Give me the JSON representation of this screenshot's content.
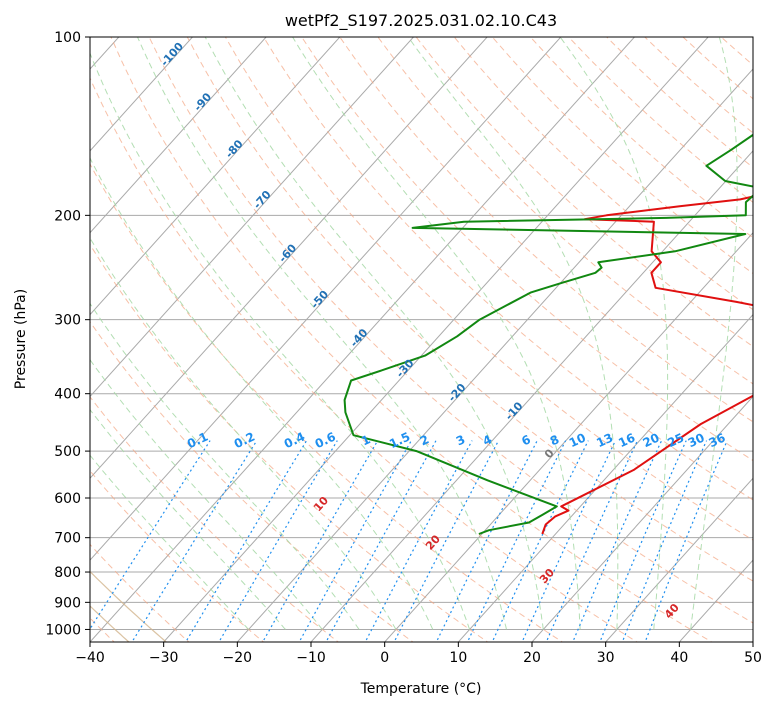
{
  "chart_data": {
    "type": "line",
    "subtype": "skew-T log-p diagram",
    "title": "wetPf2_S197.2025.031.02.10.C43",
    "xlabel": "Temperature (°C)",
    "ylabel": "Pressure (hPa)",
    "xlim": [
      -40,
      50
    ],
    "ylim": [
      1050,
      100
    ],
    "y_scale": "log",
    "grid": true,
    "x_ticks": [
      -40,
      -30,
      -20,
      -10,
      0,
      10,
      20,
      30,
      40,
      50
    ],
    "x_tick_labels": [
      "−40",
      "−30",
      "−20",
      "−10",
      "0",
      "10",
      "20",
      "30",
      "40",
      "50"
    ],
    "y_ticks": [
      100,
      200,
      300,
      400,
      500,
      600,
      700,
      800,
      900,
      1000
    ],
    "y_tick_labels": [
      "100",
      "200",
      "300",
      "400",
      "500",
      "600",
      "700",
      "800",
      "900",
      "1000"
    ],
    "colors": {
      "temperature": "#e01010",
      "dewpoint": "#118811",
      "isotherm": "#aaaaaa",
      "dry_adiabat": "#f4a582",
      "moist_adiabat": "#a6d8a6",
      "mixing_ratio": "#1f8fef",
      "isotherm_label": "#2171b5",
      "theta_label": "#d62728",
      "zero_isotherm_label": "#777777",
      "background_adiabat": "#d2b48c"
    },
    "series": [
      {
        "key": "temperature",
        "x": [
          8.2,
          7.5,
          7.8,
          8.9,
          7.4,
          8.0,
          12.8,
          16.3,
          21.0,
          25.0,
          18.8,
          13.6,
          6.2,
          -6.5,
          -8.9,
          -8.9,
          -11.5,
          -14.8,
          -24.5,
          -22.0,
          -13.2,
          -5.8,
          -0.4,
          6.0,
          10.3,
          11.1,
          11.9,
          14.1,
          18.1,
          26.6,
          27.6,
          27.7,
          29.1,
          29.9,
          31.2,
          32.9,
          34.0,
          36.5,
          40.2,
          47.3
        ],
        "y": [
          690,
          665,
          645,
          630,
          620,
          610,
          538,
          450,
          390,
          330,
          305,
          290,
          280,
          265,
          250,
          240,
          230,
          205,
          203,
          200,
          193,
          188,
          180,
          175,
          170,
          163,
          158,
          150,
          145,
          134,
          127,
          125,
          119,
          117,
          114,
          111,
          108,
          105,
          102,
          100
        ]
      },
      {
        "key": "dewpoint",
        "x": [
          -0.4,
          0.5,
          5.0,
          5.9,
          6.8,
          -5.8,
          -19.0,
          -29.5,
          -33.4,
          -35.0,
          -36.5,
          -33.5,
          -29.5,
          -27.5,
          -26.5,
          -22.9,
          -19.8,
          -16.5,
          -16.3,
          -17.4,
          -8.3,
          -0.9,
          -46.8,
          -40.6,
          -13.6,
          -3.1,
          -4.7,
          -4.3,
          -10.1,
          -14.5,
          -13.1,
          -11.1,
          -11.5,
          -10.5,
          -9.5
        ],
        "y": [
          690,
          680,
          660,
          640,
          620,
          560,
          500,
          470,
          430,
          410,
          380,
          365,
          345,
          320,
          300,
          270,
          260,
          250,
          245,
          240,
          230,
          215,
          210,
          205,
          202,
          200,
          190,
          180,
          175,
          165,
          155,
          140,
          125,
          115,
          100
        ]
      }
    ],
    "mixing_ratio_labels": [
      "0.1",
      "0.2",
      "0.4",
      "0.6",
      "1",
      "1.5",
      "2",
      "3",
      "4",
      "6",
      "8",
      "10",
      "13",
      "16",
      "20",
      "25",
      "30",
      "36"
    ],
    "isotherm_labels": [
      "-100",
      "-90",
      "-80",
      "-70",
      "-60",
      "-50",
      "-40",
      "-30",
      "-20",
      "-10",
      "0"
    ],
    "dry_adiabat_labels": [
      "10",
      "20",
      "30",
      "40"
    ]
  }
}
